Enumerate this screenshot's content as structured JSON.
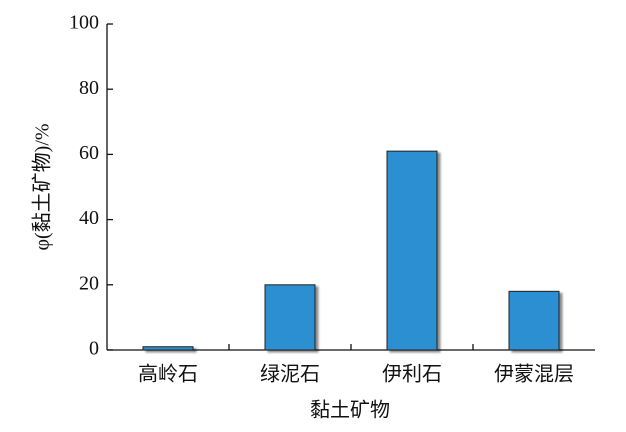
{
  "chart_data": {
    "type": "bar",
    "x_label": "黏土矿物",
    "y_label": "φ(黏土矿物)/%",
    "categories": [
      "高岭石",
      "绿泥石",
      "伊利石",
      "伊蒙混层"
    ],
    "values": [
      1,
      20,
      61,
      18
    ],
    "color": "#2b8fd1",
    "ylim": [
      0,
      100
    ],
    "yticks": [
      0,
      20,
      40,
      60,
      80,
      100
    ],
    "grid": false
  }
}
